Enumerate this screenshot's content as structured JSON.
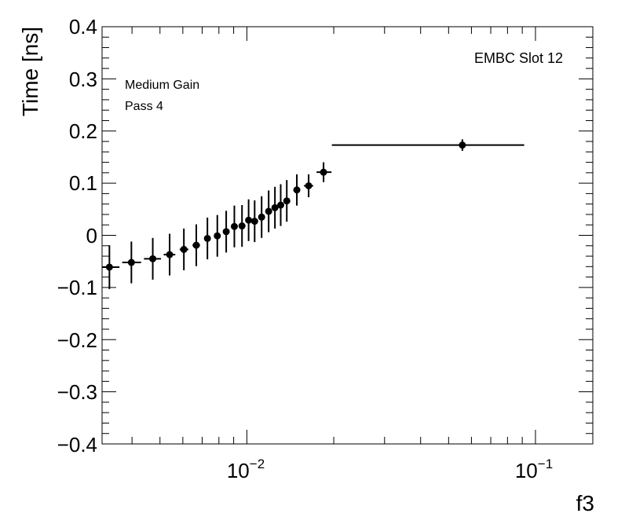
{
  "chart_data": {
    "type": "scatter",
    "style": "points with x and y error bars",
    "title": "",
    "xlabel": "f3",
    "ylabel": "Time [ns]",
    "x_scale": "log",
    "xlim": [
      0.00315,
      0.158
    ],
    "ylim": [
      -0.4,
      0.4
    ],
    "x_tick_labels": [
      "10^-2",
      "10^-1"
    ],
    "y_tick_labels": [
      "0.4",
      "0.3",
      "0.2",
      "0.1",
      "0",
      "−0.1",
      "−0.2",
      "−0.3",
      "−0.4"
    ],
    "annotations": [
      {
        "text": "EMBC Slot 12",
        "position": "top-right"
      },
      {
        "text": "Medium Gain",
        "position": "top-left"
      },
      {
        "text": "Pass 4",
        "position": "top-left"
      }
    ],
    "grid": false,
    "legend": "none",
    "marker_color": "#000000",
    "points": [
      {
        "x": 0.00334,
        "y": -0.061,
        "xerr": [
          0.00019,
          0.00028
        ],
        "yerr": 0.042
      },
      {
        "x": 0.00398,
        "y": -0.052,
        "xerr": [
          0.00028,
          0.00032
        ],
        "yerr": 0.04
      },
      {
        "x": 0.00472,
        "y": -0.045,
        "xerr": [
          0.00032,
          0.00032
        ],
        "yerr": 0.04
      },
      {
        "x": 0.0054,
        "y": -0.037,
        "xerr": [
          0.00025,
          0.00025
        ],
        "yerr": 0.04
      },
      {
        "x": 0.00605,
        "y": -0.027,
        "xerr": [
          0.0002,
          0.00022
        ],
        "yerr": 0.04
      },
      {
        "x": 0.00668,
        "y": -0.019,
        "xerr": [
          0.0002,
          0.0002
        ],
        "yerr": 0.04
      },
      {
        "x": 0.0073,
        "y": -0.006,
        "xerr": [
          0.00018,
          0.00018
        ],
        "yerr": 0.04
      },
      {
        "x": 0.0079,
        "y": -0.001,
        "xerr": [
          0.00018,
          0.00018
        ],
        "yerr": 0.04
      },
      {
        "x": 0.00848,
        "y": 0.007,
        "xerr": [
          0.00016,
          0.00016
        ],
        "yerr": 0.04
      },
      {
        "x": 0.00905,
        "y": 0.017,
        "xerr": [
          0.00016,
          0.00016
        ],
        "yerr": 0.04
      },
      {
        "x": 0.00962,
        "y": 0.018,
        "xerr": [
          0.00014,
          0.00014
        ],
        "yerr": 0.04
      },
      {
        "x": 0.01014,
        "y": 0.029,
        "xerr": [
          0.00014,
          0.00014
        ],
        "yerr": 0.04
      },
      {
        "x": 0.01064,
        "y": 0.027,
        "xerr": [
          0.00014,
          0.00014
        ],
        "yerr": 0.04
      },
      {
        "x": 0.01125,
        "y": 0.035,
        "xerr": [
          0.00014,
          0.00014
        ],
        "yerr": 0.04
      },
      {
        "x": 0.0119,
        "y": 0.046,
        "xerr": [
          0.00014,
          0.00014
        ],
        "yerr": 0.04
      },
      {
        "x": 0.01251,
        "y": 0.053,
        "xerr": [
          0.00014,
          0.00014
        ],
        "yerr": 0.04
      },
      {
        "x": 0.0131,
        "y": 0.058,
        "xerr": [
          0.00014,
          0.00014
        ],
        "yerr": 0.04
      },
      {
        "x": 0.01375,
        "y": 0.066,
        "xerr": [
          0.00014,
          0.00014
        ],
        "yerr": 0.04
      },
      {
        "x": 0.0149,
        "y": 0.087,
        "xerr": [
          0.0004,
          0.0004
        ],
        "yerr": 0.03
      },
      {
        "x": 0.01637,
        "y": 0.095,
        "xerr": [
          0.0006,
          0.0006
        ],
        "yerr": 0.022
      },
      {
        "x": 0.01844,
        "y": 0.121,
        "xerr": [
          0.001,
          0.0012
        ],
        "yerr": 0.019
      },
      {
        "x": 0.0558,
        "y": 0.173,
        "xerr": [
          0.0361,
          0.0356
        ],
        "yerr": 0.011
      }
    ]
  }
}
